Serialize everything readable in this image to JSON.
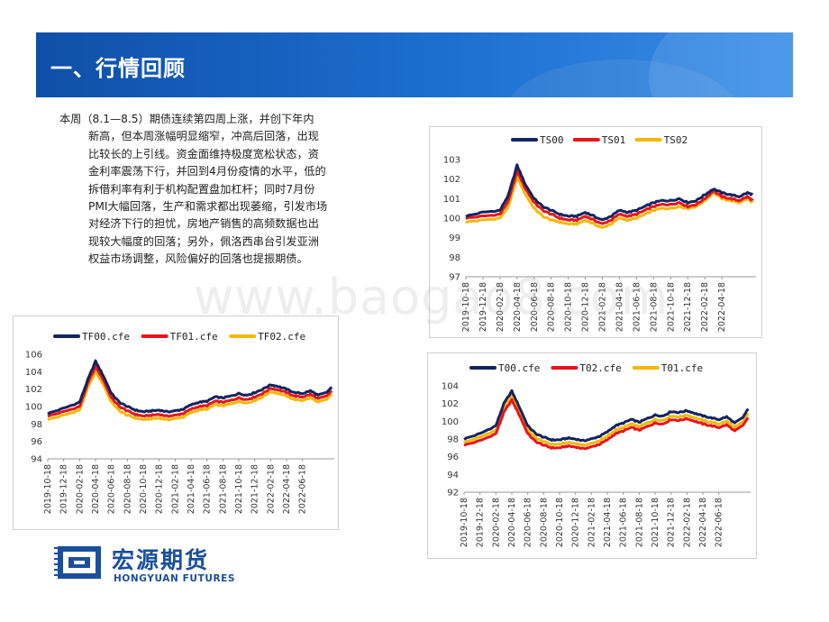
{
  "header": {
    "title": "一、行情回顾"
  },
  "commentary": {
    "lines": [
      "本周（8.1—8.5）期债连续第四周上涨，并创下年内",
      "新高，但本周涨幅明显缩窄，冲高后回落，出现",
      "比较长的上引线。资金面维持极度宽松状态，资",
      "金利率震荡下行，并回到4月份疫情的水平，低的",
      "拆借利率有利于机构配置盘加杠杆；同时7月份",
      "PMI大幅回落，生产和需求都出现萎缩，引发市场",
      "对经济下行的担忧，房地产销售的高频数据也出",
      "现较大幅度的回落；另外，佩洛西串台引发亚洲",
      "权益市场调整，风险偏好的回落也提振期债。"
    ]
  },
  "watermark": {
    "text": "www.baogao8.com"
  },
  "logo": {
    "name_cn": "宏源期货",
    "name_en": "HONGYUAN FUTURES"
  },
  "colors": {
    "dark": "#13245e",
    "red": "#e8141b",
    "yellow": "#f5b800",
    "banner": "#1760c2"
  },
  "chart_data": [
    {
      "id": "ts",
      "type": "line",
      "series_names": [
        "TS00",
        "TS01",
        "TS02"
      ],
      "series_colors": [
        "#13245e",
        "#e8141b",
        "#f5b800"
      ],
      "ylim": [
        97,
        103
      ],
      "yticks": [
        97,
        98,
        99,
        100,
        101,
        102,
        103
      ],
      "xticks": [
        "2019-10-18",
        "2019-12-18",
        "2020-02-18",
        "2020-04-18",
        "2020-06-18",
        "2020-08-18",
        "2020-10-18",
        "2020-12-18",
        "2021-02-18",
        "2021-04-18",
        "2021-06-18",
        "2021-08-18",
        "2021-10-18",
        "2021-12-18",
        "2022-02-18",
        "2022-04-18"
      ],
      "x_months": [
        0,
        2,
        4,
        5,
        6,
        7,
        8,
        9,
        10,
        11,
        12,
        13,
        14,
        15,
        16,
        17,
        18,
        19,
        20,
        21,
        22,
        23,
        24,
        25,
        26,
        27,
        28,
        29,
        30,
        31,
        32,
        33,
        33.6
      ],
      "series": [
        {
          "name": "TS00",
          "values": [
            100.1,
            100.3,
            100.4,
            101.2,
            102.7,
            101.7,
            101.0,
            100.6,
            100.4,
            100.2,
            100.1,
            100.1,
            100.3,
            100.1,
            99.9,
            100.1,
            100.4,
            100.3,
            100.4,
            100.6,
            100.8,
            100.9,
            100.9,
            101.0,
            100.8,
            100.9,
            101.2,
            101.5,
            101.3,
            101.2,
            101.1,
            101.3,
            101.2
          ]
        },
        {
          "name": "TS01",
          "values": [
            100.0,
            100.1,
            100.2,
            100.9,
            102.4,
            101.5,
            100.8,
            100.4,
            100.2,
            100.0,
            99.9,
            99.9,
            100.1,
            99.9,
            99.7,
            99.9,
            100.2,
            100.1,
            100.2,
            100.4,
            100.6,
            100.7,
            100.7,
            100.8,
            100.6,
            100.7,
            101.0,
            101.4,
            101.1,
            101.0,
            100.9,
            101.1,
            100.9
          ]
        },
        {
          "name": "TS02",
          "values": [
            99.8,
            99.9,
            100.0,
            100.6,
            102.1,
            101.2,
            100.5,
            100.1,
            99.9,
            99.8,
            99.7,
            99.7,
            99.9,
            99.7,
            99.5,
            99.7,
            100.0,
            99.9,
            100.0,
            100.2,
            100.4,
            100.5,
            100.5,
            100.6,
            100.5,
            100.6,
            100.9,
            101.3,
            101.0,
            100.9,
            100.8,
            101.0,
            100.8
          ]
        }
      ]
    },
    {
      "id": "tf",
      "type": "line",
      "series_names": [
        "TF00.cfe",
        "TF01.cfe",
        "TF02.cfe"
      ],
      "series_colors": [
        "#13245e",
        "#e8141b",
        "#f5b800"
      ],
      "ylim": [
        94,
        106
      ],
      "yticks": [
        94,
        96,
        98,
        100,
        102,
        104,
        106
      ],
      "xticks": [
        "2019-10-18",
        "2019-12-18",
        "2020-02-18",
        "2020-04-18",
        "2020-06-18",
        "2020-08-18",
        "2020-10-18",
        "2020-12-18",
        "2021-02-18",
        "2021-04-18",
        "2021-06-18",
        "2021-08-18",
        "2021-10-18",
        "2021-12-18",
        "2022-02-18",
        "2022-04-18",
        "2022-06-18"
      ],
      "x_months": [
        0,
        2,
        4,
        5,
        6,
        7,
        8,
        9,
        10,
        11,
        12,
        13,
        14,
        15,
        16,
        17,
        18,
        19,
        20,
        21,
        22,
        23,
        24,
        25,
        26,
        27,
        28,
        29,
        30,
        31,
        32,
        33,
        34,
        35,
        35.7
      ],
      "series": [
        {
          "name": "TF00.cfe",
          "values": [
            99.2,
            99.8,
            100.5,
            103.0,
            105.2,
            103.5,
            101.5,
            100.5,
            100.0,
            99.6,
            99.4,
            99.5,
            99.6,
            99.4,
            99.5,
            99.7,
            100.2,
            100.5,
            100.6,
            101.1,
            101.0,
            101.2,
            101.5,
            101.3,
            101.6,
            102.0,
            102.5,
            102.3,
            102.0,
            101.6,
            101.5,
            101.8,
            101.3,
            101.6,
            102.2
          ]
        },
        {
          "name": "TF01.cfe",
          "values": [
            98.9,
            99.4,
            100.0,
            102.6,
            104.6,
            103.0,
            101.0,
            100.0,
            99.5,
            99.1,
            98.9,
            99.0,
            99.1,
            98.9,
            99.0,
            99.2,
            99.7,
            100.0,
            100.1,
            100.6,
            100.5,
            100.7,
            101.0,
            100.8,
            101.1,
            101.5,
            102.1,
            101.9,
            101.6,
            101.2,
            101.1,
            101.4,
            100.9,
            101.2,
            101.8
          ]
        },
        {
          "name": "TF02.cfe",
          "values": [
            98.5,
            99.0,
            99.6,
            102.1,
            104.0,
            102.5,
            100.5,
            99.5,
            99.0,
            98.7,
            98.5,
            98.6,
            98.7,
            98.5,
            98.6,
            98.8,
            99.3,
            99.6,
            99.7,
            100.2,
            100.1,
            100.3,
            100.6,
            100.4,
            100.7,
            101.1,
            101.7,
            101.5,
            101.2,
            100.8,
            100.7,
            101.0,
            100.5,
            100.8,
            101.4
          ]
        }
      ]
    },
    {
      "id": "t",
      "type": "line",
      "series_names": [
        "T00.cfe",
        "T02.cfe",
        "T01.cfe"
      ],
      "series_colors": [
        "#13245e",
        "#e8141b",
        "#f5b800"
      ],
      "ylim": [
        92,
        104
      ],
      "yticks": [
        92,
        94,
        96,
        98,
        100,
        102,
        104
      ],
      "xticks": [
        "2019-10-18",
        "2019-12-18",
        "2020-02-18",
        "2020-04-18",
        "2020-06-18",
        "2020-08-18",
        "2020-10-18",
        "2020-12-18",
        "2021-02-18",
        "2021-04-18",
        "2021-06-18",
        "2021-08-18",
        "2021-10-18",
        "2021-12-18",
        "2022-02-18",
        "2022-04-18",
        "2022-06-18"
      ],
      "x_months": [
        0,
        2,
        4,
        5,
        6,
        7,
        8,
        9,
        10,
        11,
        12,
        13,
        14,
        15,
        16,
        17,
        18,
        19,
        20,
        21,
        22,
        23,
        24,
        25,
        26,
        27,
        28,
        29,
        30,
        31,
        32,
        33,
        34,
        35,
        35.7
      ],
      "series": [
        {
          "name": "T00.cfe",
          "values": [
            98.0,
            98.6,
            99.5,
            102.0,
            103.4,
            101.5,
            99.5,
            98.6,
            98.2,
            97.9,
            97.9,
            98.1,
            98.0,
            97.8,
            98.0,
            98.3,
            98.8,
            99.5,
            99.8,
            100.2,
            99.9,
            100.3,
            100.7,
            100.6,
            101.1,
            101.0,
            101.2,
            100.9,
            100.6,
            100.4,
            100.2,
            100.5,
            99.8,
            100.4,
            101.4
          ]
        },
        {
          "name": "T02.cfe",
          "values": [
            97.3,
            97.8,
            98.6,
            101.0,
            102.4,
            100.6,
            98.6,
            97.7,
            97.3,
            97.0,
            97.0,
            97.2,
            97.1,
            96.9,
            97.1,
            97.4,
            97.9,
            98.6,
            98.9,
            99.3,
            99.0,
            99.4,
            99.8,
            99.7,
            100.2,
            100.1,
            100.3,
            100.0,
            99.7,
            99.5,
            99.3,
            99.6,
            98.9,
            99.5,
            100.4
          ]
        },
        {
          "name": "T01.cfe",
          "values": [
            97.6,
            98.2,
            99.0,
            101.5,
            102.9,
            101.0,
            99.0,
            98.1,
            97.7,
            97.4,
            97.4,
            97.6,
            97.5,
            97.3,
            97.5,
            97.8,
            98.3,
            99.0,
            99.3,
            99.7,
            99.4,
            99.8,
            100.2,
            100.1,
            100.6,
            100.5,
            100.7,
            100.4,
            100.1,
            99.9,
            99.7,
            100.0,
            99.3,
            99.9,
            100.9
          ]
        }
      ]
    }
  ]
}
